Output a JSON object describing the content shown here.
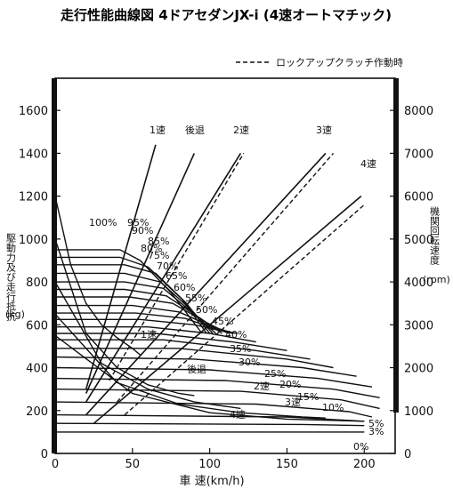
{
  "chart_data": {
    "type": "line",
    "title": "走行性能曲線図 4ドアセダンJX-i (4速オートマチック)",
    "legend": "ロックアップクラッチ作動時",
    "xlabel": "車 速(km/h)",
    "ylabel_left": "駆動力及び走行抵抗",
    "ylabel_left_unit": "(kg)",
    "ylabel_right": "機関回転速度",
    "ylabel_right_unit": "(rpm)",
    "xlim": [
      0,
      220
    ],
    "ylim_left": [
      0,
      1750
    ],
    "ylim_right": [
      0,
      8750
    ],
    "x_ticks": [
      0,
      50,
      100,
      150,
      200
    ],
    "y_left_ticks": [
      0,
      200,
      400,
      600,
      800,
      1000,
      1200,
      1400,
      1600
    ],
    "y_right_ticks": [
      0,
      1000,
      2000,
      3000,
      4000,
      5000,
      6000,
      7000,
      8000
    ],
    "rpm_lines": [
      {
        "name": "1速",
        "x": [
          20,
          65
        ],
        "y": [
          1500,
          7200
        ]
      },
      {
        "name": "後退",
        "x": [
          20,
          90
        ],
        "y": [
          1400,
          7000
        ]
      },
      {
        "name": "2速",
        "x": [
          20,
          120
        ],
        "y": [
          1200,
          7000
        ]
      },
      {
        "name": "3速",
        "x": [
          20,
          175
        ],
        "y": [
          900,
          7000
        ]
      },
      {
        "name": "4速",
        "x": [
          25,
          198
        ],
        "y": [
          700,
          6000
        ]
      }
    ],
    "rpm_lines_lockup": [
      {
        "name": "2速",
        "x": [
          35,
          122
        ],
        "y": [
          1700,
          7000
        ]
      },
      {
        "name": "3速",
        "x": [
          40,
          180
        ],
        "y": [
          1200,
          7000
        ]
      },
      {
        "name": "4速",
        "x": [
          45,
          200
        ],
        "y": [
          900,
          5800
        ]
      }
    ],
    "throttle_labels": [
      "100%",
      "95%",
      "90%",
      "85%",
      "80%",
      "75%",
      "70%",
      "65%",
      "60%",
      "55%",
      "50%",
      "45%",
      "40%",
      "35%",
      "30%",
      "25%",
      "20%",
      "15%",
      "10%",
      "5%",
      "3%",
      "0%"
    ],
    "throttle_curves": [
      {
        "name": "100%",
        "x": [
          0,
          42,
          55,
          75,
          95
        ],
        "y": [
          950,
          950,
          900,
          750,
          560
        ]
      },
      {
        "name": "95%",
        "x": [
          0,
          42,
          60,
          82,
          98
        ],
        "y": [
          915,
          915,
          870,
          720,
          560
        ]
      },
      {
        "name": "90%",
        "x": [
          0,
          45,
          65,
          85,
          100
        ],
        "y": [
          880,
          880,
          840,
          700,
          560
        ]
      },
      {
        "name": "85%",
        "x": [
          0,
          45,
          68,
          88,
          102
        ],
        "y": [
          840,
          840,
          800,
          670,
          560
        ]
      },
      {
        "name": "80%",
        "x": [
          0,
          45,
          70,
          90,
          104
        ],
        "y": [
          800,
          800,
          770,
          650,
          560
        ]
      },
      {
        "name": "75%",
        "x": [
          0,
          45,
          72,
          94,
          108
        ],
        "y": [
          765,
          765,
          735,
          630,
          560
        ]
      },
      {
        "name": "70%",
        "x": [
          0,
          48,
          76,
          98,
          112
        ],
        "y": [
          730,
          730,
          700,
          610,
          560
        ]
      },
      {
        "name": "65%",
        "x": [
          0,
          50,
          80,
          102,
          116
        ],
        "y": [
          690,
          690,
          660,
          590,
          560
        ]
      },
      {
        "name": "60%",
        "x": [
          0,
          52,
          84,
          106,
          118
        ],
        "y": [
          655,
          655,
          630,
          575,
          560
        ]
      },
      {
        "name": "55%",
        "x": [
          0,
          55,
          90,
          115
        ],
        "y": [
          625,
          625,
          600,
          560
        ]
      },
      {
        "name": "50%",
        "x": [
          0,
          60,
          100,
          130
        ],
        "y": [
          590,
          590,
          560,
          520
        ]
      },
      {
        "name": "45%",
        "x": [
          0,
          65,
          115,
          150
        ],
        "y": [
          560,
          560,
          520,
          480
        ]
      },
      {
        "name": "40%",
        "x": [
          0,
          70,
          130,
          165
        ],
        "y": [
          530,
          530,
          480,
          440
        ]
      },
      {
        "name": "35%",
        "x": [
          0,
          80,
          150,
          180
        ],
        "y": [
          490,
          490,
          440,
          400
        ]
      },
      {
        "name": "30%",
        "x": [
          0,
          90,
          160,
          195
        ],
        "y": [
          450,
          440,
          400,
          360
        ]
      },
      {
        "name": "25%",
        "x": [
          0,
          100,
          170,
          205
        ],
        "y": [
          400,
          390,
          350,
          310
        ]
      },
      {
        "name": "20%",
        "x": [
          0,
          110,
          180,
          210
        ],
        "y": [
          350,
          340,
          300,
          260
        ]
      },
      {
        "name": "15%",
        "x": [
          0,
          120,
          185,
          210
        ],
        "y": [
          300,
          290,
          250,
          210
        ]
      },
      {
        "name": "10%",
        "x": [
          0,
          130,
          190,
          205
        ],
        "y": [
          240,
          230,
          195,
          170
        ]
      },
      {
        "name": "5%",
        "x": [
          0,
          150,
          200
        ],
        "y": [
          180,
          170,
          150
        ]
      },
      {
        "name": "3%",
        "x": [
          0,
          160,
          200
        ],
        "y": [
          140,
          135,
          130
        ]
      },
      {
        "name": "0%",
        "x": [
          0,
          170,
          200
        ],
        "y": [
          100,
          100,
          100
        ]
      }
    ],
    "resistance_curves": [
      {
        "name": "1速",
        "x": [
          0,
          10,
          20,
          30,
          40,
          50,
          55
        ],
        "y": [
          1200,
          880,
          700,
          600,
          540,
          490,
          460
        ]
      },
      {
        "name": "後退",
        "x": [
          0,
          20,
          40,
          60,
          80,
          90
        ],
        "y": [
          1000,
          560,
          400,
          320,
          280,
          270
        ]
      },
      {
        "name": "2速",
        "x": [
          0,
          30,
          60,
          90,
          120
        ],
        "y": [
          800,
          420,
          300,
          240,
          210
        ]
      },
      {
        "name": "3速",
        "x": [
          0,
          40,
          80,
          120,
          160,
          175
        ],
        "y": [
          650,
          330,
          230,
          190,
          170,
          165
        ]
      },
      {
        "name": "4速",
        "x": [
          0,
          50,
          100,
          150,
          200
        ],
        "y": [
          550,
          280,
          190,
          160,
          150
        ]
      }
    ]
  },
  "curve_labels": {
    "gear_top": [
      "1速",
      "後退",
      "2速",
      "3速",
      "4速"
    ],
    "gear_mid": [
      "1速",
      "後退",
      "2速",
      "3速",
      "4速"
    ]
  }
}
